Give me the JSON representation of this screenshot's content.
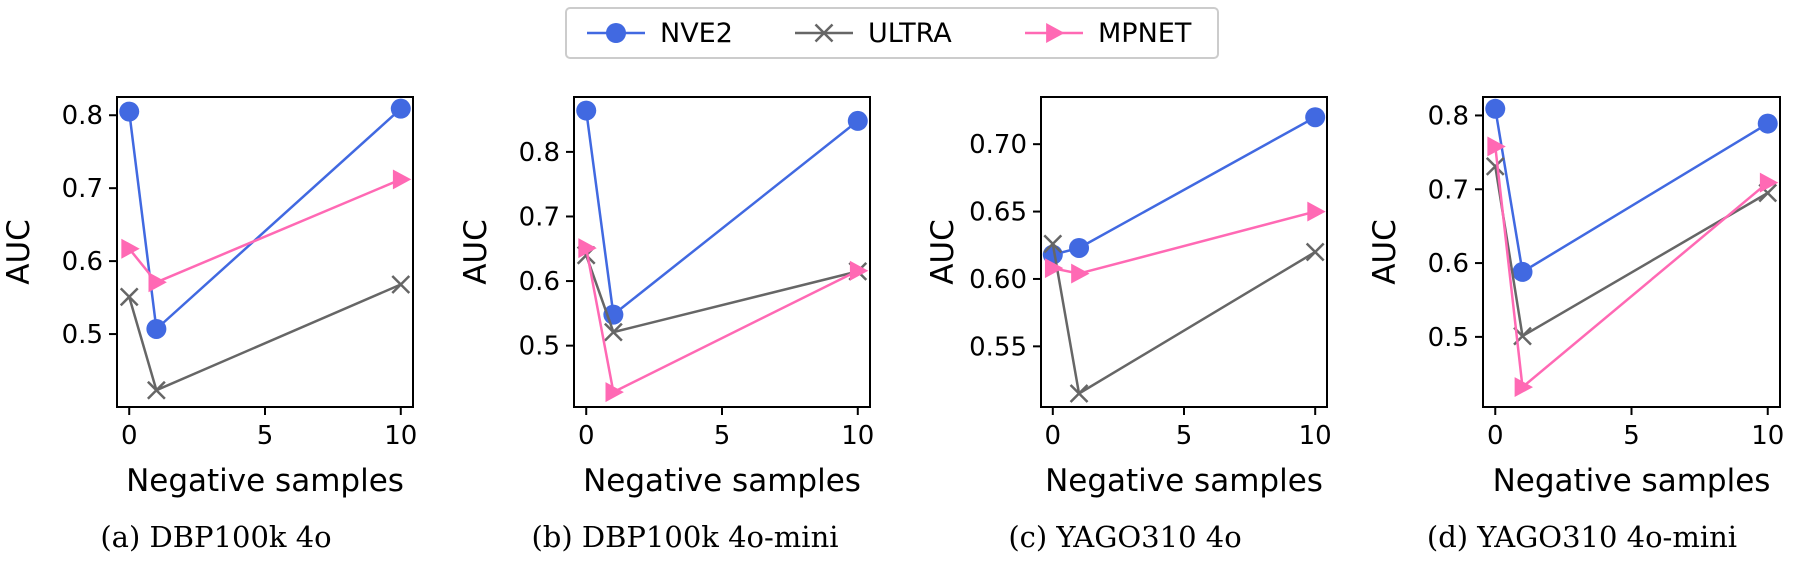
{
  "legend": {
    "items": [
      {
        "label": "NVE2",
        "color": "#4169e1",
        "marker": "circle"
      },
      {
        "label": "ULTRA",
        "color": "#666666",
        "marker": "x"
      },
      {
        "label": "MPNET",
        "color": "#ff69b4",
        "marker": "triangle-right"
      }
    ]
  },
  "chart_data": [
    {
      "type": "line",
      "caption": "(a) DBP100k 4o",
      "xlabel": "Negative samples",
      "ylabel": "AUC",
      "x": [
        0,
        1,
        10
      ],
      "xticks": [
        0,
        5,
        10
      ],
      "xlim": [
        -0.45,
        10.45
      ],
      "yticks": [
        0.5,
        0.6,
        0.7,
        0.8
      ],
      "ytick_labels": [
        "0.5",
        "0.6",
        "0.7",
        "0.8"
      ],
      "ylim": [
        0.4,
        0.825
      ],
      "series": [
        {
          "name": "NVE2",
          "values": [
            0.805,
            0.507,
            0.809
          ]
        },
        {
          "name": "ULTRA",
          "values": [
            0.551,
            0.423,
            0.568
          ]
        },
        {
          "name": "MPNET",
          "values": [
            0.617,
            0.571,
            0.712
          ]
        }
      ]
    },
    {
      "type": "line",
      "caption": "(b) DBP100k 4o-mini",
      "xlabel": "Negative samples",
      "ylabel": "AUC",
      "x": [
        0,
        1,
        10
      ],
      "xticks": [
        0,
        5,
        10
      ],
      "xlim": [
        -0.45,
        10.45
      ],
      "yticks": [
        0.5,
        0.6,
        0.7,
        0.8
      ],
      "ytick_labels": [
        "0.5",
        "0.6",
        "0.7",
        "0.8"
      ],
      "ylim": [
        0.405,
        0.885
      ],
      "series": [
        {
          "name": "NVE2",
          "values": [
            0.864,
            0.548,
            0.848
          ]
        },
        {
          "name": "ULTRA",
          "values": [
            0.64,
            0.521,
            0.615
          ]
        },
        {
          "name": "MPNET",
          "values": [
            0.651,
            0.428,
            0.616
          ]
        }
      ]
    },
    {
      "type": "line",
      "caption": "(c) YAGO310 4o",
      "xlabel": "Negative samples",
      "ylabel": "AUC",
      "x": [
        0,
        1,
        10
      ],
      "xticks": [
        0,
        5,
        10
      ],
      "xlim": [
        -0.45,
        10.45
      ],
      "yticks": [
        0.55,
        0.6,
        0.65,
        0.7
      ],
      "ytick_labels": [
        "0.55",
        "0.60",
        "0.65",
        "0.70"
      ],
      "ylim": [
        0.505,
        0.735
      ],
      "series": [
        {
          "name": "NVE2",
          "values": [
            0.618,
            0.623,
            0.72
          ]
        },
        {
          "name": "ULTRA",
          "values": [
            0.626,
            0.515,
            0.62
          ]
        },
        {
          "name": "MPNET",
          "values": [
            0.608,
            0.604,
            0.65
          ]
        }
      ]
    },
    {
      "type": "line",
      "caption": "(d) YAGO310 4o-mini",
      "xlabel": "Negative samples",
      "ylabel": "AUC",
      "x": [
        0,
        1,
        10
      ],
      "xticks": [
        0,
        5,
        10
      ],
      "xlim": [
        -0.45,
        10.45
      ],
      "yticks": [
        0.5,
        0.6,
        0.7,
        0.8
      ],
      "ytick_labels": [
        "0.5",
        "0.6",
        "0.7",
        "0.8"
      ],
      "ylim": [
        0.405,
        0.825
      ],
      "series": [
        {
          "name": "NVE2",
          "values": [
            0.809,
            0.588,
            0.789
          ]
        },
        {
          "name": "ULTRA",
          "values": [
            0.731,
            0.501,
            0.695
          ]
        },
        {
          "name": "MPNET",
          "values": [
            0.758,
            0.432,
            0.709
          ]
        }
      ]
    }
  ]
}
